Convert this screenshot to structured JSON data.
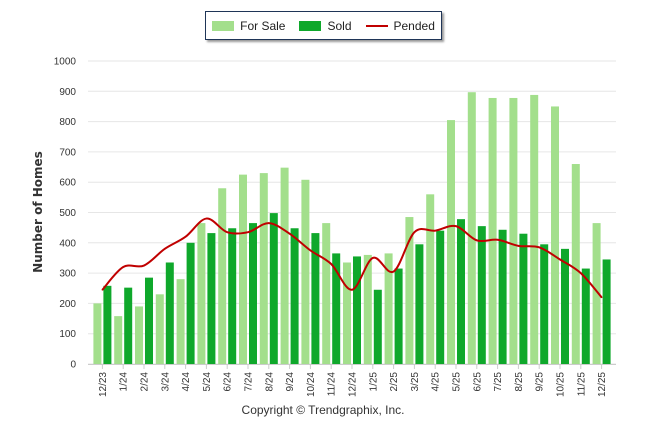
{
  "chart_data": {
    "type": "bar",
    "title": "",
    "xlabel": "",
    "ylabel": "Number of Homes",
    "ylim": [
      0,
      1000
    ],
    "yticks": [
      0,
      100,
      200,
      300,
      400,
      500,
      600,
      700,
      800,
      900,
      1000
    ],
    "ytick_labels": [
      "0",
      "100",
      "200",
      "300",
      "400",
      "500",
      "600",
      "700",
      "800",
      "900",
      "1000"
    ],
    "grid": true,
    "legend_position": "top-center",
    "categories": [
      "12/23",
      "1/24",
      "2/24",
      "3/24",
      "4/24",
      "5/24",
      "6/24",
      "7/24",
      "8/24",
      "9/24",
      "10/24",
      "11/24",
      "12/24",
      "1/25",
      "2/25",
      "3/25",
      "4/25",
      "5/25",
      "6/25",
      "7/25",
      "8/25",
      "9/25",
      "10/25",
      "11/25",
      "12/25"
    ],
    "series": [
      {
        "name": "For Sale",
        "kind": "bar",
        "color": "#a3df8c",
        "values": [
          200,
          158,
          190,
          230,
          280,
          465,
          580,
          625,
          630,
          648,
          608,
          465,
          335,
          360,
          365,
          485,
          560,
          805,
          897,
          878,
          878,
          888,
          850,
          660,
          465
        ]
      },
      {
        "name": "Sold",
        "kind": "bar",
        "color": "#0fa82b",
        "values": [
          258,
          252,
          285,
          335,
          400,
          432,
          448,
          465,
          498,
          448,
          432,
          365,
          355,
          245,
          315,
          395,
          440,
          478,
          455,
          443,
          430,
          395,
          380,
          315,
          345
        ]
      },
      {
        "name": "Pended",
        "kind": "line",
        "color": "#c00000",
        "values": [
          245,
          320,
          325,
          380,
          420,
          480,
          435,
          435,
          465,
          430,
          375,
          330,
          245,
          350,
          305,
          435,
          440,
          455,
          408,
          410,
          390,
          385,
          345,
          300,
          220
        ]
      }
    ]
  },
  "legend": {
    "items": [
      {
        "label": "For Sale",
        "color": "#a3df8c"
      },
      {
        "label": "Sold",
        "color": "#0fa82b"
      },
      {
        "label": "Pended",
        "color": "#c00000"
      }
    ]
  },
  "footer": {
    "copyright": "Copyright © Trendgraphix, Inc."
  }
}
